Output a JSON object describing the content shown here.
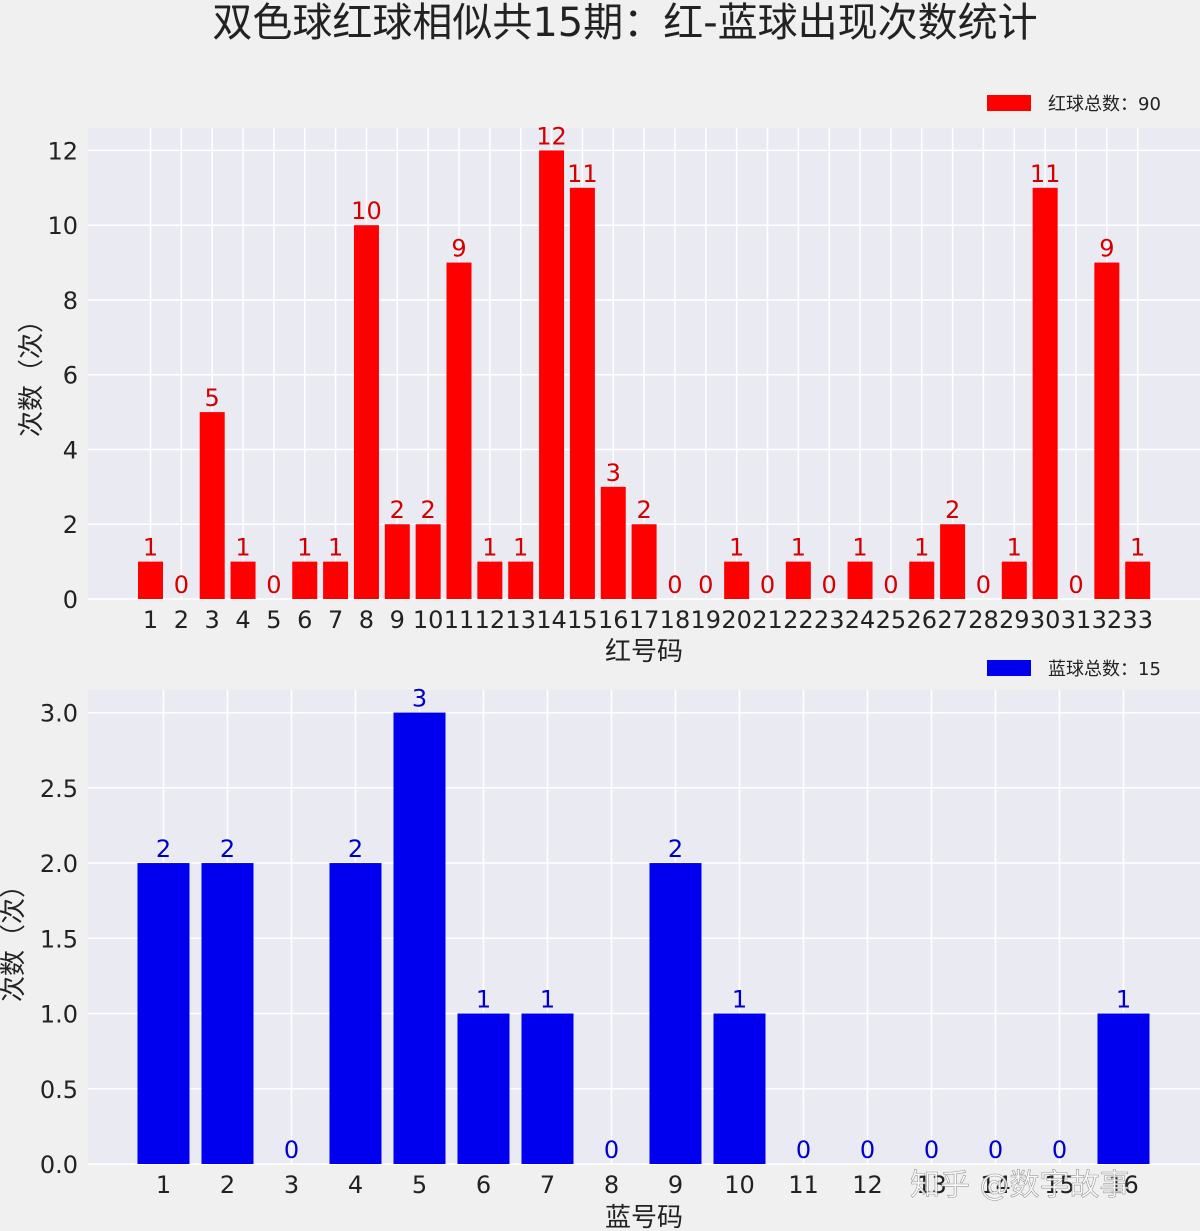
{
  "title": "双色球红球相似共15期：红-蓝球出现次数统计",
  "watermark": "知乎 @数字故事",
  "colors": {
    "red": "#ff0000",
    "blue": "#0000ee",
    "plot_bg": "#eaeaf2",
    "fig_bg": "#f0f0f0"
  },
  "chart_data": [
    {
      "type": "bar",
      "legend": "红球总数：90",
      "xlabel": "红号码",
      "ylabel": "次数（次）",
      "ylim": [
        0,
        12.6
      ],
      "yticks": [
        "0",
        "2",
        "4",
        "6",
        "8",
        "10",
        "12"
      ],
      "categories": [
        "1",
        "2",
        "3",
        "4",
        "5",
        "6",
        "7",
        "8",
        "9",
        "10",
        "11",
        "12",
        "13",
        "14",
        "15",
        "16",
        "17",
        "18",
        "19",
        "20",
        "21",
        "22",
        "23",
        "24",
        "25",
        "26",
        "27",
        "28",
        "29",
        "30",
        "31",
        "32",
        "33"
      ],
      "values": [
        1,
        0,
        5,
        1,
        0,
        1,
        1,
        10,
        2,
        2,
        9,
        1,
        1,
        12,
        11,
        3,
        2,
        0,
        0,
        1,
        0,
        1,
        0,
        1,
        0,
        1,
        2,
        0,
        1,
        11,
        0,
        9,
        1
      ],
      "value_labels": [
        "1",
        "0",
        "5",
        "1",
        "0",
        "1",
        "1",
        "10",
        "2",
        "2",
        "9",
        "1",
        "1",
        "12",
        "11",
        "3",
        "2",
        "0",
        "0",
        "1",
        "0",
        "1",
        "0",
        "1",
        "0",
        "1",
        "2",
        "0",
        "1",
        "11",
        "0",
        "9",
        "1"
      ],
      "color": "#ff0000",
      "legend_position": "top-right",
      "grid": true
    },
    {
      "type": "bar",
      "legend": "蓝球总数：15",
      "xlabel": "蓝号码",
      "ylabel": "次数（次）",
      "ylim": [
        0,
        3.15
      ],
      "yticks": [
        "0.0",
        "0.5",
        "1.0",
        "1.5",
        "2.0",
        "2.5",
        "3.0"
      ],
      "categories": [
        "1",
        "2",
        "3",
        "4",
        "5",
        "6",
        "7",
        "8",
        "9",
        "10",
        "11",
        "12",
        "13",
        "14",
        "15",
        "16"
      ],
      "values": [
        2,
        2,
        0,
        2,
        3,
        1,
        1,
        0,
        2,
        1,
        0,
        0,
        0,
        0,
        0,
        1
      ],
      "value_labels": [
        "2",
        "2",
        "0",
        "2",
        "3",
        "1",
        "1",
        "0",
        "2",
        "1",
        "0",
        "0",
        "0",
        "0",
        "0",
        "1"
      ],
      "color": "#0000ee",
      "legend_position": "top-right",
      "grid": true
    }
  ]
}
